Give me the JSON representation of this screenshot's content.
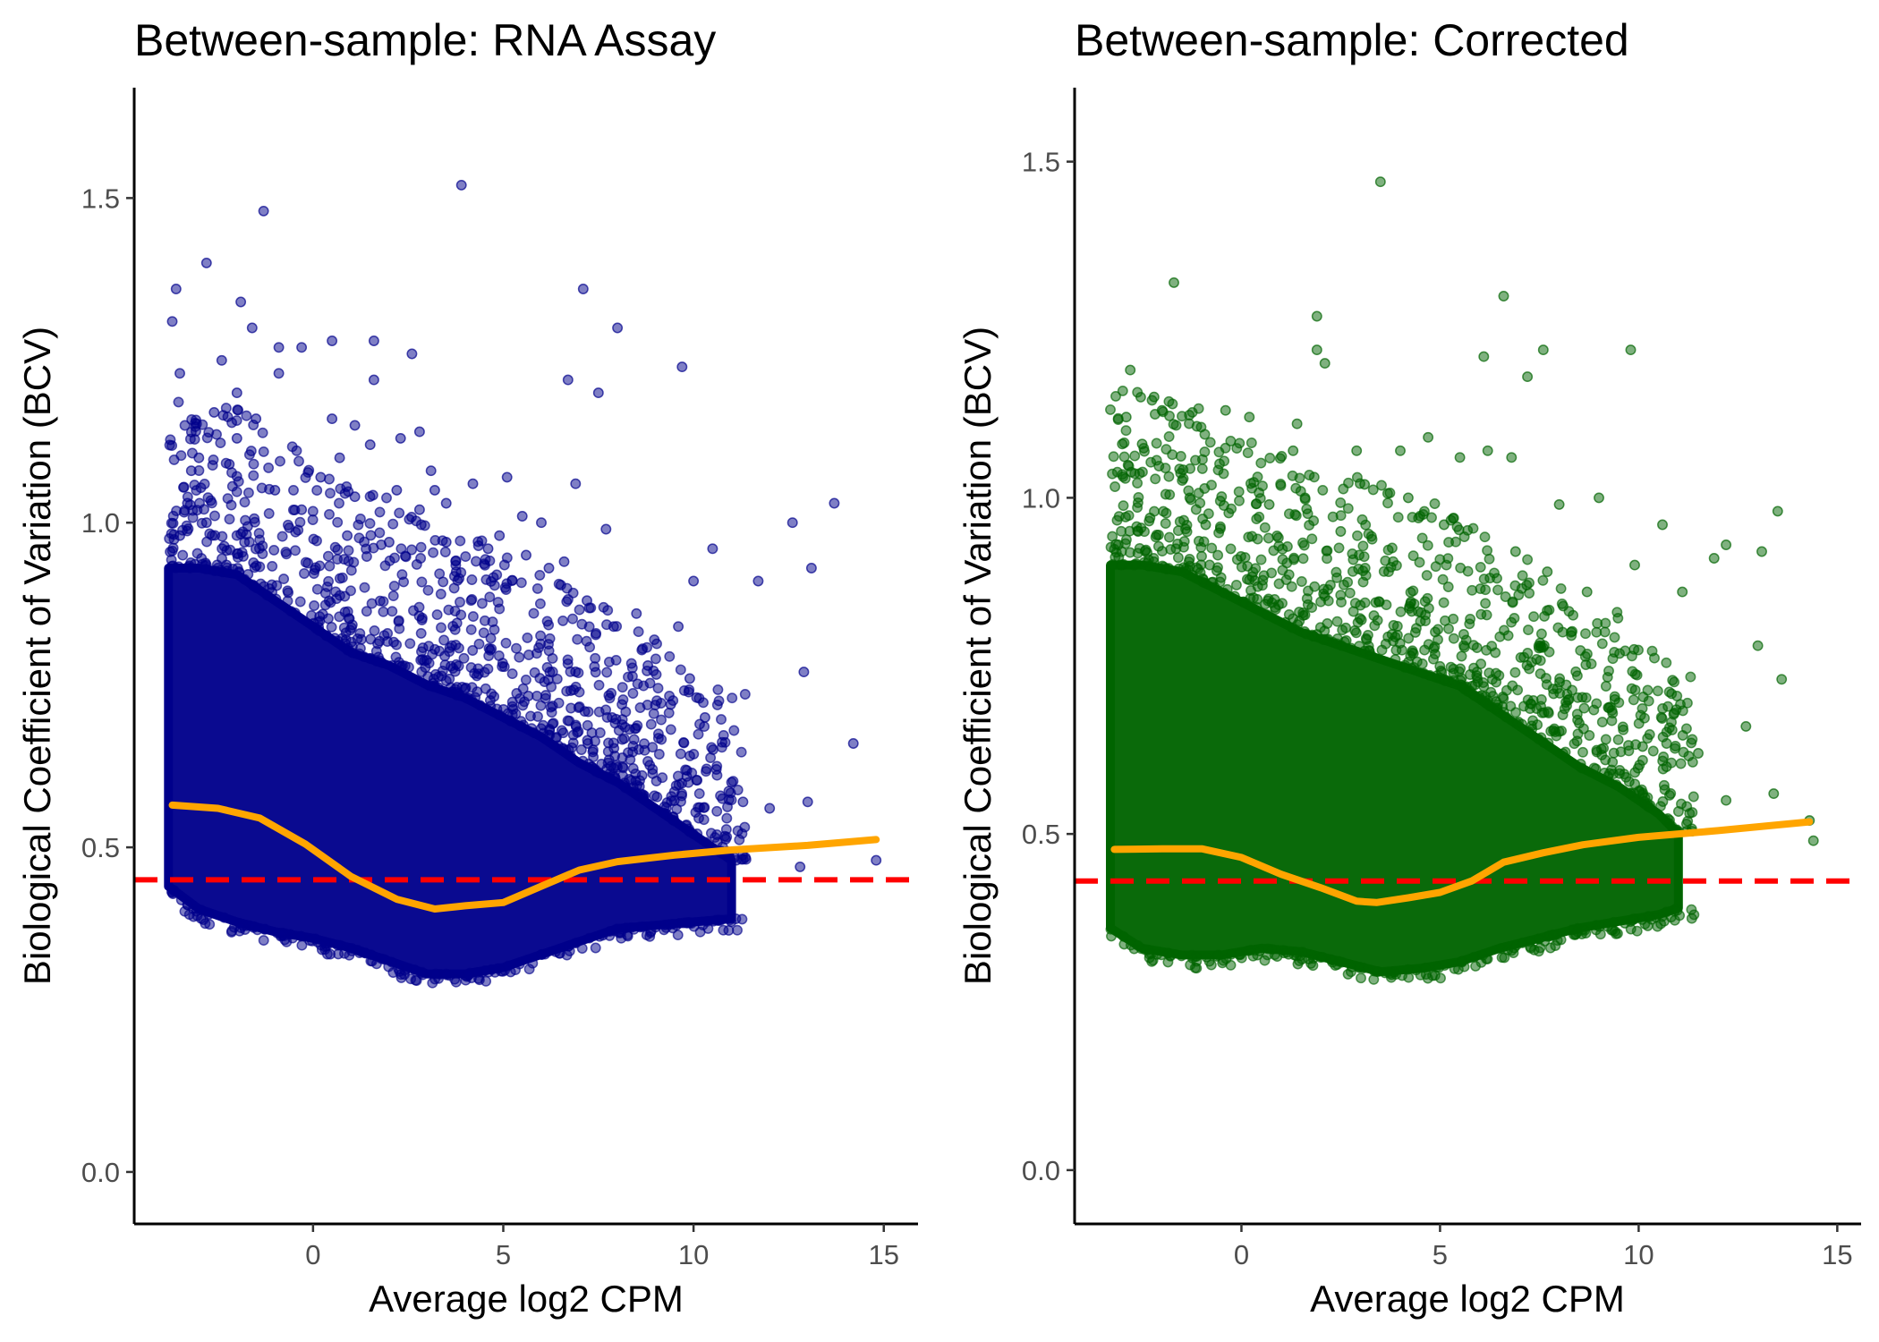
{
  "chart_data": [
    {
      "type": "scatter",
      "title": "Between-sample: RNA Assay",
      "xlabel": "Average log2 CPM",
      "ylabel": "Biological Coefficient of Variation (BCV)",
      "xlim": [
        -4.7,
        15.9
      ],
      "ylim": [
        -0.08,
        1.67
      ],
      "x_ticks": [
        0,
        5,
        10,
        15
      ],
      "y_ticks": [
        0.0,
        0.5,
        1.0,
        1.5
      ],
      "x_tick_labels": [
        "0",
        "5",
        "10",
        "15"
      ],
      "y_tick_labels": [
        "0.0",
        "0.5",
        "1.0",
        "1.5"
      ],
      "grid": false,
      "legend": "none",
      "point_color": "#00008B",
      "trend_color": "#FFA500",
      "common_color": "#FF0000",
      "common_dispersion_bcv": 0.45,
      "trend": {
        "x": [
          -3.7,
          -2.5,
          -1.4,
          -0.2,
          1.0,
          2.2,
          3.2,
          4.0,
          5.0,
          6.0,
          7.0,
          8.0,
          9.5,
          11.0,
          13.0,
          14.8
        ],
        "y": [
          0.565,
          0.56,
          0.545,
          0.505,
          0.455,
          0.42,
          0.405,
          0.41,
          0.415,
          0.44,
          0.465,
          0.478,
          0.488,
          0.496,
          0.503,
          0.512
        ]
      },
      "bulk": {
        "x": [
          -3.8,
          -3.0,
          -2.0,
          -1.0,
          0.0,
          1.0,
          2.0,
          3.0,
          4.0,
          5.0,
          6.0,
          7.0,
          8.0,
          9.0,
          10.0,
          11.0
        ],
        "lower": [
          0.44,
          0.405,
          0.385,
          0.37,
          0.36,
          0.345,
          0.325,
          0.305,
          0.305,
          0.315,
          0.335,
          0.355,
          0.375,
          0.38,
          0.385,
          0.39
        ],
        "upper": [
          0.93,
          0.93,
          0.92,
          0.88,
          0.84,
          0.8,
          0.78,
          0.75,
          0.73,
          0.7,
          0.67,
          0.63,
          0.6,
          0.56,
          0.52,
          0.48
        ]
      },
      "outliers": [
        [
          3.9,
          1.52
        ],
        [
          -1.3,
          1.48
        ],
        [
          -2.8,
          1.4
        ],
        [
          -3.6,
          1.36
        ],
        [
          -3.7,
          1.31
        ],
        [
          7.1,
          1.36
        ],
        [
          -1.9,
          1.34
        ],
        [
          -1.6,
          1.3
        ],
        [
          8.0,
          1.3
        ],
        [
          -0.9,
          1.27
        ],
        [
          -0.3,
          1.27
        ],
        [
          0.5,
          1.28
        ],
        [
          2.6,
          1.26
        ],
        [
          1.6,
          1.28
        ],
        [
          -2.4,
          1.25
        ],
        [
          -3.5,
          1.23
        ],
        [
          -2.0,
          1.2
        ],
        [
          6.7,
          1.22
        ],
        [
          9.7,
          1.24
        ],
        [
          7.5,
          1.2
        ],
        [
          1.6,
          1.22
        ],
        [
          -0.9,
          1.23
        ],
        [
          -2.6,
          1.17
        ],
        [
          -1.5,
          1.16
        ],
        [
          0.5,
          1.16
        ],
        [
          1.1,
          1.15
        ],
        [
          -2.0,
          1.13
        ],
        [
          2.8,
          1.14
        ],
        [
          0.7,
          1.1
        ],
        [
          1.5,
          1.12
        ],
        [
          -3.0,
          1.1
        ],
        [
          -3.2,
          1.08
        ],
        [
          3.1,
          1.08
        ],
        [
          2.3,
          1.13
        ],
        [
          4.2,
          1.06
        ],
        [
          6.9,
          1.06
        ],
        [
          5.1,
          1.07
        ],
        [
          3.2,
          1.05
        ],
        [
          -2.2,
          1.09
        ],
        [
          2.2,
          1.05
        ],
        [
          -1.0,
          1.05
        ],
        [
          0.2,
          1.07
        ],
        [
          13.7,
          1.03
        ],
        [
          12.6,
          1.0
        ],
        [
          5.5,
          1.01
        ],
        [
          6.0,
          1.0
        ],
        [
          7.7,
          0.99
        ],
        [
          2.8,
          1.02
        ],
        [
          -0.3,
          1.02
        ],
        [
          1.1,
          1.04
        ],
        [
          3.5,
          1.03
        ],
        [
          10.5,
          0.96
        ],
        [
          4.6,
          0.96
        ],
        [
          5.6,
          0.95
        ],
        [
          13.1,
          0.93
        ],
        [
          11.7,
          0.91
        ],
        [
          10.0,
          0.91
        ],
        [
          6.2,
          0.93
        ],
        [
          7.2,
          0.88
        ],
        [
          8.5,
          0.86
        ],
        [
          9.6,
          0.84
        ],
        [
          12.9,
          0.77
        ],
        [
          14.2,
          0.66
        ],
        [
          12.0,
          0.56
        ],
        [
          13.0,
          0.57
        ],
        [
          14.8,
          0.48
        ],
        [
          12.8,
          0.47
        ],
        [
          11.0,
          0.6
        ],
        [
          10.6,
          0.62
        ],
        [
          11.3,
          0.57
        ],
        [
          9.4,
          0.72
        ],
        [
          10.3,
          0.7
        ],
        [
          8.8,
          0.78
        ],
        [
          9.9,
          0.76
        ],
        [
          -3.5,
          0.98
        ],
        [
          -3.3,
          1.03
        ],
        [
          -2.8,
          1.0
        ],
        [
          -1.8,
          0.97
        ],
        [
          0.9,
          0.98
        ],
        [
          2.0,
          0.97
        ],
        [
          3.5,
          0.97
        ],
        [
          4.9,
          0.98
        ],
        [
          6.6,
          0.94
        ],
        [
          7.9,
          0.84
        ]
      ]
    },
    {
      "type": "scatter",
      "title": "Between-sample: Corrected",
      "xlabel": "Average log2 CPM",
      "ylabel": "Biological Coefficient of Variation (BCV)",
      "xlim": [
        -4.2,
        15.6
      ],
      "ylim": [
        -0.08,
        1.61
      ],
      "x_ticks": [
        0,
        5,
        10,
        15
      ],
      "y_ticks": [
        0.0,
        0.5,
        1.0,
        1.5
      ],
      "x_tick_labels": [
        "0",
        "5",
        "10",
        "15"
      ],
      "y_tick_labels": [
        "0.0",
        "0.5",
        "1.0",
        "1.5"
      ],
      "grid": false,
      "legend": "none",
      "point_color": "#006400",
      "trend_color": "#FFA500",
      "common_color": "#FF0000",
      "common_dispersion_bcv": 0.43,
      "trend": {
        "x": [
          -3.2,
          -2.0,
          -1.0,
          0.0,
          1.0,
          2.0,
          2.9,
          3.4,
          4.2,
          5.0,
          5.8,
          6.6,
          7.6,
          8.6,
          10.0,
          12.0,
          14.3
        ],
        "y": [
          0.477,
          0.478,
          0.478,
          0.465,
          0.44,
          0.42,
          0.4,
          0.398,
          0.405,
          0.413,
          0.43,
          0.458,
          0.472,
          0.484,
          0.495,
          0.505,
          0.518
        ]
      },
      "bulk": {
        "x": [
          -3.3,
          -2.5,
          -1.5,
          -0.5,
          0.5,
          1.5,
          2.5,
          3.5,
          4.5,
          5.5,
          6.5,
          7.5,
          8.5,
          9.5,
          10.5,
          11.0
        ],
        "lower": [
          0.36,
          0.33,
          0.32,
          0.32,
          0.33,
          0.325,
          0.31,
          0.295,
          0.3,
          0.31,
          0.33,
          0.345,
          0.36,
          0.37,
          0.38,
          0.39
        ],
        "upper": [
          0.9,
          0.9,
          0.89,
          0.86,
          0.83,
          0.8,
          0.78,
          0.76,
          0.74,
          0.72,
          0.68,
          0.64,
          0.6,
          0.57,
          0.53,
          0.5
        ]
      },
      "outliers": [
        [
          3.5,
          1.47
        ],
        [
          -1.7,
          1.32
        ],
        [
          6.6,
          1.3
        ],
        [
          1.9,
          1.27
        ],
        [
          1.9,
          1.22
        ],
        [
          7.6,
          1.22
        ],
        [
          6.1,
          1.21
        ],
        [
          9.8,
          1.22
        ],
        [
          2.1,
          1.2
        ],
        [
          7.2,
          1.18
        ],
        [
          -2.8,
          1.19
        ],
        [
          -2.2,
          1.15
        ],
        [
          -2.9,
          1.12
        ],
        [
          -0.4,
          1.13
        ],
        [
          0.2,
          1.12
        ],
        [
          -2.0,
          1.13
        ],
        [
          1.4,
          1.11
        ],
        [
          -3.0,
          1.08
        ],
        [
          -2.5,
          1.08
        ],
        [
          1.3,
          1.07
        ],
        [
          2.9,
          1.07
        ],
        [
          4.0,
          1.07
        ],
        [
          5.5,
          1.06
        ],
        [
          6.2,
          1.07
        ],
        [
          6.8,
          1.06
        ],
        [
          4.7,
          1.09
        ],
        [
          3.1,
          1.02
        ],
        [
          4.2,
          1.0
        ],
        [
          -1.3,
          1.0
        ],
        [
          -2.3,
          0.97
        ],
        [
          0.7,
          0.99
        ],
        [
          1.6,
          1.0
        ],
        [
          8.0,
          0.99
        ],
        [
          9.0,
          1.0
        ],
        [
          13.5,
          0.98
        ],
        [
          10.6,
          0.96
        ],
        [
          12.2,
          0.93
        ],
        [
          13.1,
          0.92
        ],
        [
          11.9,
          0.91
        ],
        [
          9.9,
          0.9
        ],
        [
          7.7,
          0.89
        ],
        [
          8.7,
          0.86
        ],
        [
          11.1,
          0.86
        ],
        [
          13.0,
          0.78
        ],
        [
          13.6,
          0.73
        ],
        [
          12.7,
          0.66
        ],
        [
          11.5,
          0.62
        ],
        [
          13.4,
          0.56
        ],
        [
          14.3,
          0.52
        ],
        [
          14.4,
          0.49
        ],
        [
          12.2,
          0.55
        ],
        [
          10.7,
          0.6
        ],
        [
          10.1,
          0.63
        ],
        [
          9.4,
          0.7
        ],
        [
          -3.1,
          0.93
        ],
        [
          -2.6,
          0.95
        ],
        [
          -0.9,
          0.96
        ],
        [
          2.5,
          0.95
        ],
        [
          5.1,
          0.96
        ],
        [
          6.9,
          0.92
        ],
        [
          8.3,
          0.8
        ],
        [
          10.9,
          0.68
        ]
      ]
    }
  ]
}
